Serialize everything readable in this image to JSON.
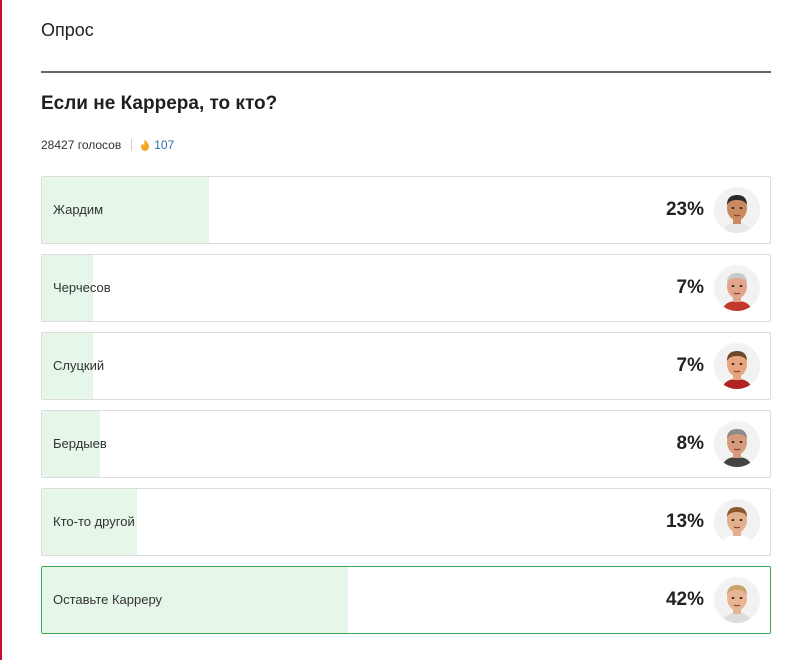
{
  "poll": {
    "section_title": "Опрос",
    "question": "Если не Каррера, то кто?",
    "votes_text": "28427 голосов",
    "reactions_count": "107",
    "options": [
      {
        "label": "Жардим",
        "percent_text": "23%",
        "percent": 23,
        "selected": false,
        "avatar": "avatar-jardim"
      },
      {
        "label": "Черчесов",
        "percent_text": "7%",
        "percent": 7,
        "selected": false,
        "avatar": "avatar-cherchesov"
      },
      {
        "label": "Слуцкий",
        "percent_text": "7%",
        "percent": 7,
        "selected": false,
        "avatar": "avatar-slutsky"
      },
      {
        "label": "Бердыев",
        "percent_text": "8%",
        "percent": 8,
        "selected": false,
        "avatar": "avatar-berdyev"
      },
      {
        "label": "Кто-то другой",
        "percent_text": "13%",
        "percent": 13,
        "selected": false,
        "avatar": "avatar-other"
      },
      {
        "label": "Оставьте Карреру",
        "percent_text": "42%",
        "percent": 42,
        "selected": true,
        "avatar": "avatar-carrera"
      }
    ]
  },
  "colors": {
    "accent_red": "#c8102e",
    "bar_fill": "#e6f6e8",
    "selected_border": "#3aa757",
    "reaction_count": "#2d6fb0",
    "fire_icon": "#f5a623"
  }
}
